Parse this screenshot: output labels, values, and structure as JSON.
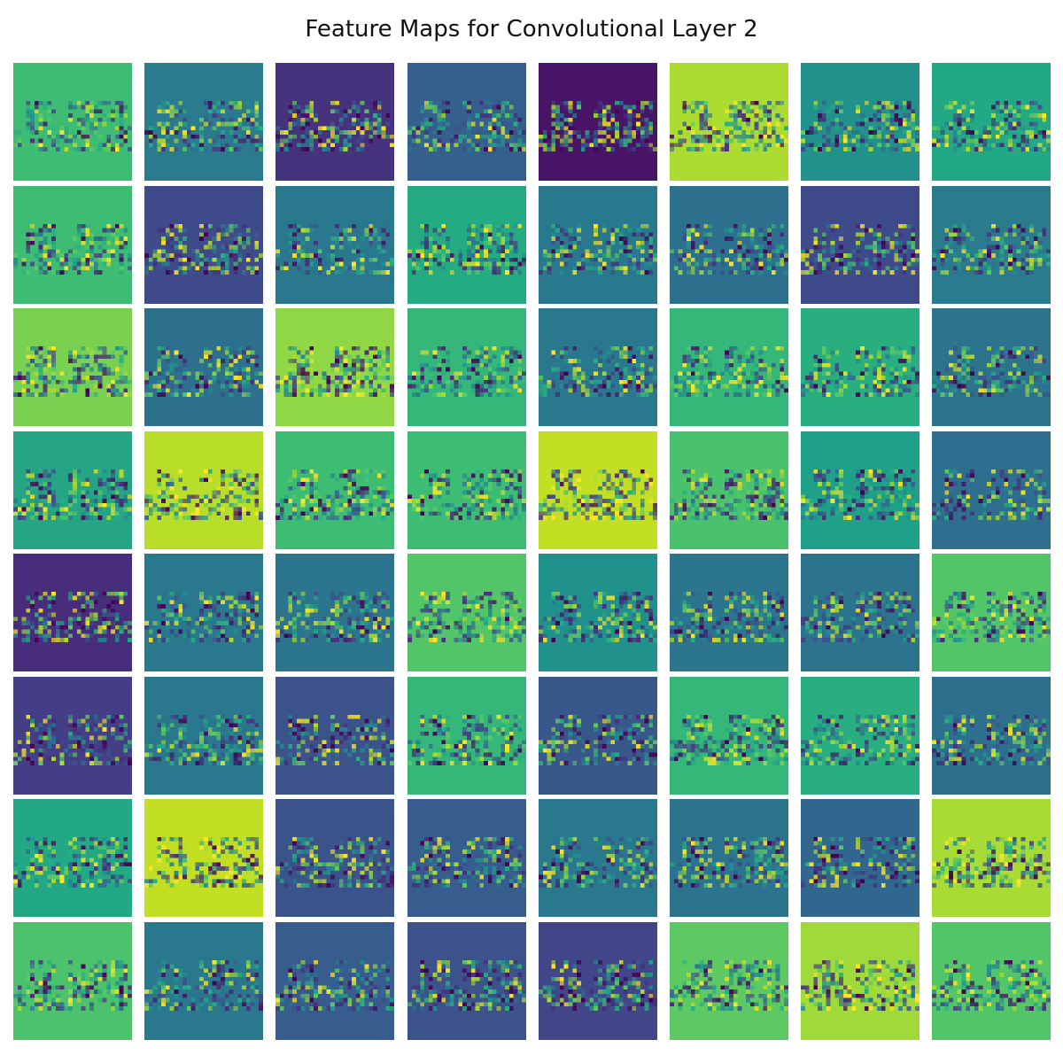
{
  "title": "Feature Maps for Convolutional Layer 2",
  "chart_data": {
    "type": "heatmap",
    "title": "Feature Maps for Convolutional Layer 2",
    "colormap": "viridis",
    "grid": false,
    "axes_visible": false,
    "rows": 8,
    "cols": 8,
    "map_size": [
      28,
      28
    ],
    "background_colors": [
      "#3fbc73",
      "#2a7b8e",
      "#46337e",
      "#355f8d",
      "#481467",
      "#addc30",
      "#21918c",
      "#22a884",
      "#3fbc73",
      "#3e4a89",
      "#2a788e",
      "#25ab82",
      "#29798e",
      "#2d708e",
      "#3e4a89",
      "#2a7b8e",
      "#7ad151",
      "#2d708e",
      "#8fd744",
      "#35b779",
      "#2a788e",
      "#35b779",
      "#29af7f",
      "#2c738e",
      "#25a584",
      "#b8de29",
      "#3dbc74",
      "#3dbc74",
      "#c2df23",
      "#4ac16d",
      "#1fa088",
      "#2e6e8e",
      "#472d7b",
      "#2a788e",
      "#2b758e",
      "#52c569",
      "#21918c",
      "#2b758e",
      "#2c738e",
      "#52c569",
      "#433e85",
      "#2a788e",
      "#3b528b",
      "#35b779",
      "#38588c",
      "#35b779",
      "#28ae80",
      "#2d708e",
      "#22a884",
      "#c2df23",
      "#3a538b",
      "#365d8d",
      "#2a788e",
      "#2c738e",
      "#31668e",
      "#a8db34",
      "#4cc26c",
      "#2a788e",
      "#365d8d",
      "#3b528b",
      "#404688",
      "#5ec962",
      "#9fda3a",
      "#52c569"
    ]
  }
}
